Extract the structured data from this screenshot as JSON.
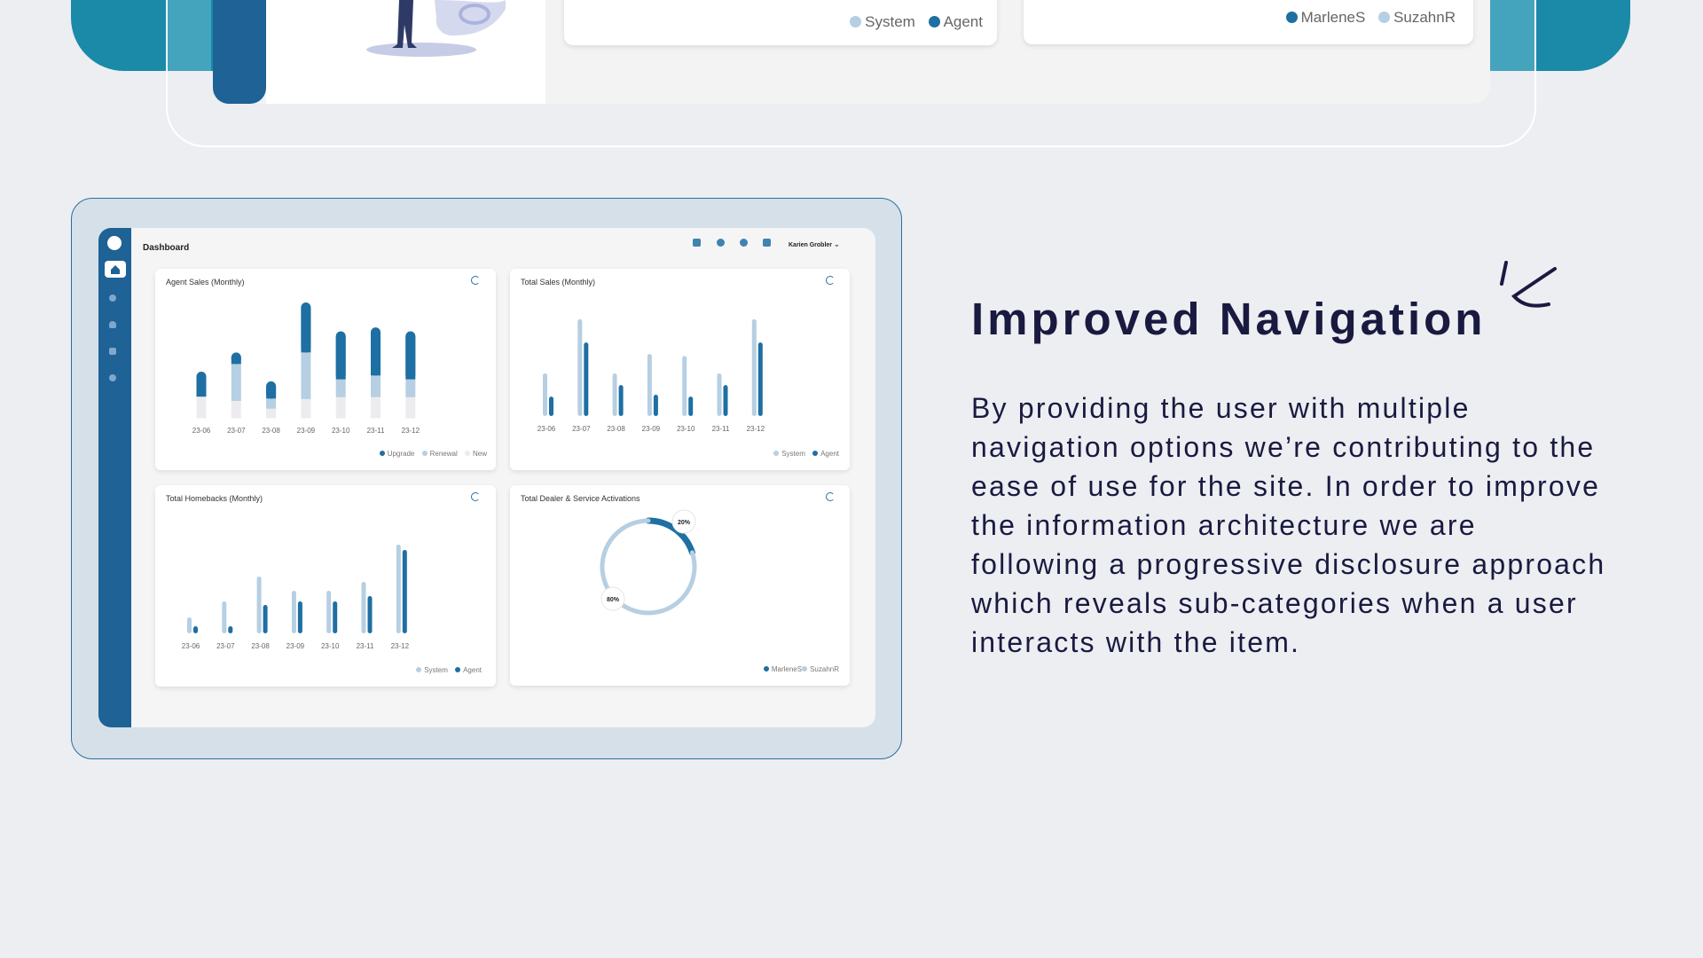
{
  "top_section": {
    "chart_a_legend": [
      "System",
      "Agent"
    ],
    "chart_b_legend": [
      "MarleneS",
      "SuzahnR"
    ]
  },
  "dashboard": {
    "title": "Dashboard",
    "user_name": "Karien Grobler",
    "sidebar_icons": [
      "logo-icon",
      "home-icon",
      "user-icon",
      "headset-icon",
      "chart-icon",
      "gear-icon"
    ],
    "header_icons": [
      "layout-icon",
      "layers-icon",
      "moon-icon",
      "calendar-icon"
    ]
  },
  "chart_data": [
    {
      "type": "bar",
      "title": "Agent Sales (Monthly)",
      "categories": [
        "23-06",
        "23-07",
        "23-08",
        "23-09",
        "23-10",
        "23-11",
        "23-12"
      ],
      "stacked": true,
      "series": [
        {
          "name": "New",
          "values": [
            22,
            18,
            10,
            20,
            22,
            22,
            22
          ]
        },
        {
          "name": "Renewal",
          "values": [
            0,
            38,
            10,
            48,
            18,
            22,
            18
          ]
        },
        {
          "name": "Upgrade",
          "values": [
            26,
            12,
            18,
            52,
            50,
            50,
            50
          ]
        }
      ],
      "ylim": [
        0,
        120
      ],
      "colors": {
        "Upgrade": "#1e6fa3",
        "Renewal": "#b6cfe2",
        "New": "#ececef"
      }
    },
    {
      "type": "bar",
      "title": "Total Sales (Monthly)",
      "categories": [
        "23-06",
        "23-07",
        "23-08",
        "23-09",
        "23-10",
        "23-11",
        "23-12"
      ],
      "series": [
        {
          "name": "System",
          "values": [
            44,
            100,
            44,
            64,
            62,
            44,
            100
          ]
        },
        {
          "name": "Agent",
          "values": [
            20,
            76,
            32,
            22,
            20,
            32,
            76
          ]
        }
      ],
      "ylim": [
        0,
        110
      ],
      "colors": {
        "System": "#b6cfe2",
        "Agent": "#1e6fa3"
      }
    },
    {
      "type": "bar",
      "title": "Total Homebacks (Monthly)",
      "categories": [
        "23-06",
        "23-07",
        "23-08",
        "23-09",
        "23-10",
        "23-11",
        "23-12"
      ],
      "series": [
        {
          "name": "System",
          "values": [
            18,
            36,
            64,
            48,
            48,
            58,
            100
          ]
        },
        {
          "name": "Agent",
          "values": [
            8,
            8,
            32,
            36,
            36,
            42,
            94
          ]
        }
      ],
      "ylim": [
        0,
        110
      ],
      "colors": {
        "System": "#b6cfe2",
        "Agent": "#1e6fa3"
      }
    },
    {
      "type": "pie",
      "title": "Total Dealer & Service Activations",
      "labels": [
        "MarleneS",
        "SuzahnR"
      ],
      "values": [
        20,
        80
      ],
      "value_labels": [
        "20%",
        "80%"
      ],
      "colors": {
        "MarleneS": "#1e6fa3",
        "SuzahnR": "#b6cfe2"
      }
    }
  ],
  "feature": {
    "heading": "Improved Navigation",
    "body": "By providing the user with multiple navigation options we’re contributing to the ease of use for the site. In order to improve the information architecture we are following a progressive disclosure approach which reveals sub-categories when a user interacts with the item."
  }
}
